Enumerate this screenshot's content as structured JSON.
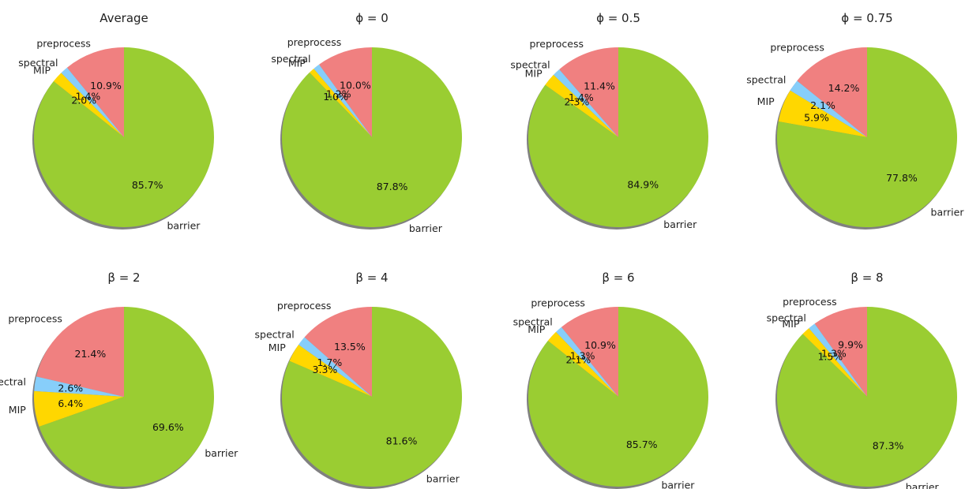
{
  "colors": {
    "barrier": "#9acd32",
    "MIP": "#ffd700",
    "spectral": "#87cefa",
    "preprocess": "#f08080"
  },
  "chart_data": [
    {
      "type": "pie",
      "title": "Average",
      "slices": [
        {
          "label": "preprocess",
          "value": 10.9,
          "pct_label": "10.9%"
        },
        {
          "label": "spectral",
          "value": 1.4,
          "pct_label": "1.4%"
        },
        {
          "label": "MIP",
          "value": 2.0,
          "pct_label": "2.0%"
        },
        {
          "label": "barrier",
          "value": 85.7,
          "pct_label": "85.7%"
        }
      ]
    },
    {
      "type": "pie",
      "title": "ϕ = 0",
      "slices": [
        {
          "label": "preprocess",
          "value": 10.0,
          "pct_label": "10.0%"
        },
        {
          "label": "spectral",
          "value": 1.2,
          "pct_label": "1.2%"
        },
        {
          "label": "MIP",
          "value": 1.0,
          "pct_label": "1.0%"
        },
        {
          "label": "barrier",
          "value": 87.8,
          "pct_label": "87.8%"
        }
      ]
    },
    {
      "type": "pie",
      "title": "ϕ = 0.5",
      "slices": [
        {
          "label": "preprocess",
          "value": 11.4,
          "pct_label": "11.4%"
        },
        {
          "label": "spectral",
          "value": 1.4,
          "pct_label": "1.4%"
        },
        {
          "label": "MIP",
          "value": 2.3,
          "pct_label": "2.3%"
        },
        {
          "label": "barrier",
          "value": 84.9,
          "pct_label": "84.9%"
        }
      ]
    },
    {
      "type": "pie",
      "title": "ϕ = 0.75",
      "slices": [
        {
          "label": "preprocess",
          "value": 14.2,
          "pct_label": "14.2%"
        },
        {
          "label": "spectral",
          "value": 2.1,
          "pct_label": "2.1%"
        },
        {
          "label": "MIP",
          "value": 5.9,
          "pct_label": "5.9%"
        },
        {
          "label": "barrier",
          "value": 77.8,
          "pct_label": "77.8%"
        }
      ]
    },
    {
      "type": "pie",
      "title": "β = 2",
      "slices": [
        {
          "label": "preprocess",
          "value": 21.4,
          "pct_label": "21.4%"
        },
        {
          "label": "spectral",
          "value": 2.6,
          "pct_label": "2.6%"
        },
        {
          "label": "MIP",
          "value": 6.4,
          "pct_label": "6.4%"
        },
        {
          "label": "barrier",
          "value": 69.6,
          "pct_label": "69.6%"
        }
      ]
    },
    {
      "type": "pie",
      "title": "β = 4",
      "slices": [
        {
          "label": "preprocess",
          "value": 13.5,
          "pct_label": "13.5%"
        },
        {
          "label": "spectral",
          "value": 1.7,
          "pct_label": "1.7%"
        },
        {
          "label": "MIP",
          "value": 3.3,
          "pct_label": "3.3%"
        },
        {
          "label": "barrier",
          "value": 81.6,
          "pct_label": "81.6%"
        }
      ]
    },
    {
      "type": "pie",
      "title": "β = 6",
      "slices": [
        {
          "label": "preprocess",
          "value": 10.9,
          "pct_label": "10.9%"
        },
        {
          "label": "spectral",
          "value": 1.3,
          "pct_label": "1.3%"
        },
        {
          "label": "MIP",
          "value": 2.1,
          "pct_label": "2.1%"
        },
        {
          "label": "barrier",
          "value": 85.7,
          "pct_label": "85.7%"
        }
      ]
    },
    {
      "type": "pie",
      "title": "β = 8",
      "slices": [
        {
          "label": "preprocess",
          "value": 9.9,
          "pct_label": "9.9%"
        },
        {
          "label": "spectral",
          "value": 1.3,
          "pct_label": "1.3%"
        },
        {
          "label": "MIP",
          "value": 1.5,
          "pct_label": "1.5%"
        },
        {
          "label": "barrier",
          "value": 87.3,
          "pct_label": "87.3%"
        }
      ]
    }
  ]
}
